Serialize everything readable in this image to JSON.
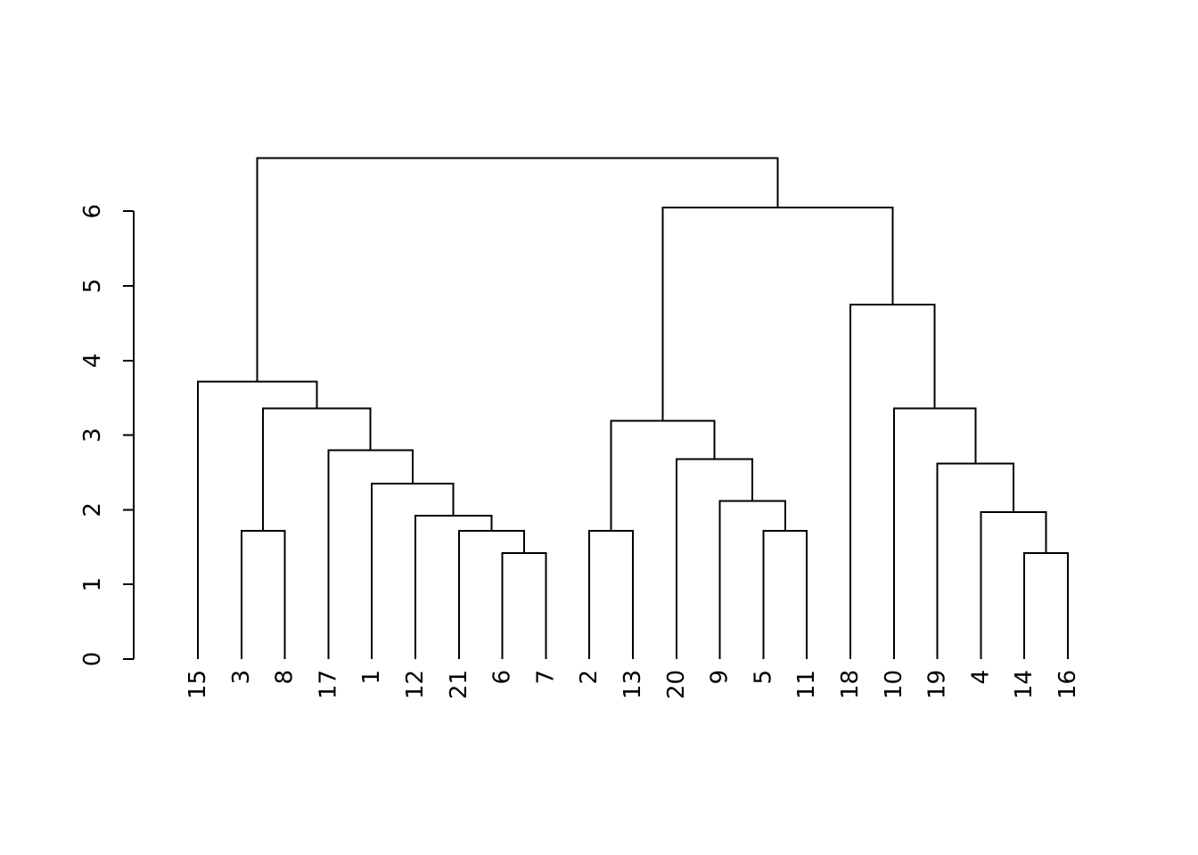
{
  "chart_data": {
    "type": "dendrogram",
    "title": "",
    "xlabel": "",
    "ylabel": "",
    "ylim": [
      0,
      6
    ],
    "yticks": [
      "0",
      "1",
      "2",
      "3",
      "4",
      "5",
      "6"
    ],
    "grid": false,
    "legend": false,
    "orientation": "leaves-bottom",
    "leaves_in_order": [
      "15",
      "3",
      "8",
      "17",
      "1",
      "12",
      "21",
      "6",
      "7",
      "2",
      "13",
      "20",
      "9",
      "5",
      "11",
      "18",
      "10",
      "19",
      "4",
      "14",
      "16"
    ],
    "tree": {
      "h": 6.71,
      "children": [
        {
          "h": 3.72,
          "children": [
            {
              "leaf": "15"
            },
            {
              "h": 3.36,
              "children": [
                {
                  "h": 1.72,
                  "children": [
                    {
                      "leaf": "3"
                    },
                    {
                      "leaf": "8"
                    }
                  ]
                },
                {
                  "h": 2.8,
                  "children": [
                    {
                      "leaf": "17"
                    },
                    {
                      "h": 2.35,
                      "children": [
                        {
                          "leaf": "1"
                        },
                        {
                          "h": 1.92,
                          "children": [
                            {
                              "leaf": "12"
                            },
                            {
                              "h": 1.72,
                              "children": [
                                {
                                  "leaf": "21"
                                },
                                {
                                  "h": 1.42,
                                  "children": [
                                    {
                                      "leaf": "6"
                                    },
                                    {
                                      "leaf": "7"
                                    }
                                  ]
                                }
                              ]
                            }
                          ]
                        }
                      ]
                    }
                  ]
                }
              ]
            }
          ]
        },
        {
          "h": 6.05,
          "children": [
            {
              "h": 3.19,
              "children": [
                {
                  "h": 1.72,
                  "children": [
                    {
                      "leaf": "2"
                    },
                    {
                      "leaf": "13"
                    }
                  ]
                },
                {
                  "h": 2.68,
                  "children": [
                    {
                      "leaf": "20"
                    },
                    {
                      "h": 2.12,
                      "children": [
                        {
                          "leaf": "9"
                        },
                        {
                          "h": 1.72,
                          "children": [
                            {
                              "leaf": "5"
                            },
                            {
                              "leaf": "11"
                            }
                          ]
                        }
                      ]
                    }
                  ]
                }
              ]
            },
            {
              "h": 4.75,
              "children": [
                {
                  "leaf": "18"
                },
                {
                  "h": 3.36,
                  "children": [
                    {
                      "leaf": "10"
                    },
                    {
                      "h": 2.62,
                      "children": [
                        {
                          "leaf": "19"
                        },
                        {
                          "h": 1.97,
                          "children": [
                            {
                              "leaf": "4"
                            },
                            {
                              "h": 1.42,
                              "children": [
                                {
                                  "leaf": "14"
                                },
                                {
                                  "leaf": "16"
                                }
                              ]
                            }
                          ]
                        }
                      ]
                    }
                  ]
                }
              ]
            }
          ]
        }
      ]
    },
    "colors": {
      "line": "#000000",
      "text": "#000000",
      "background": "#ffffff"
    }
  }
}
